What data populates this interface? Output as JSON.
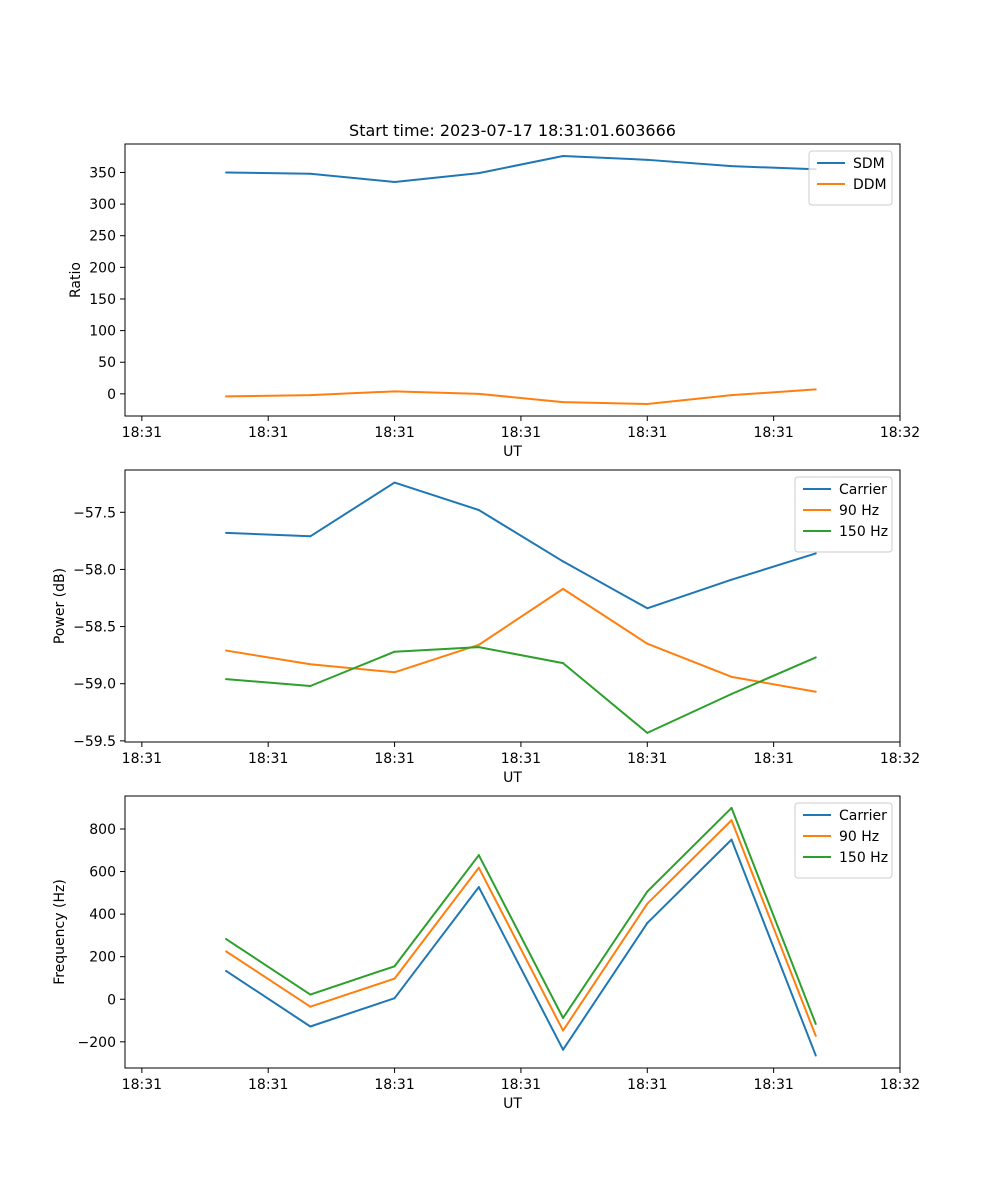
{
  "colors": {
    "blue": "#1f77b4",
    "orange": "#ff7f0e",
    "green": "#2ca02c"
  },
  "figure_title": "Start time: 2023-07-17 18:31:01.603666",
  "chart_data": [
    {
      "type": "line",
      "title": "Start time: 2023-07-17 18:31:01.603666",
      "xlabel": "UT",
      "ylabel": "Ratio",
      "x": [
        1,
        2,
        3,
        4,
        5,
        6,
        7,
        8
      ],
      "x_ticks": [
        0,
        1.5,
        3,
        4.5,
        6,
        7.5,
        9
      ],
      "x_tick_labels": [
        "18:31",
        "18:31",
        "18:31",
        "18:31",
        "18:31",
        "18:31",
        "18:32"
      ],
      "xlim": [
        -0.2,
        9.0
      ],
      "ylim": [
        -35,
        395
      ],
      "y_ticks": [
        0,
        50,
        100,
        150,
        200,
        250,
        300,
        350
      ],
      "y_tick_labels": [
        "0",
        "50",
        "100",
        "150",
        "200",
        "250",
        "300",
        "350"
      ],
      "legend": "top-right",
      "series": [
        {
          "name": "SDM",
          "color": "blue",
          "values": [
            350,
            348,
            335,
            349,
            376,
            370,
            360,
            355
          ]
        },
        {
          "name": "DDM",
          "color": "orange",
          "values": [
            -4,
            -2,
            4,
            0,
            -13,
            -16,
            -2,
            7
          ]
        }
      ]
    },
    {
      "type": "line",
      "title": "",
      "xlabel": "UT",
      "ylabel": "Power (dB)",
      "x": [
        1,
        2,
        3,
        4,
        5,
        6,
        7,
        8
      ],
      "x_ticks": [
        0,
        1.5,
        3,
        4.5,
        6,
        7.5,
        9
      ],
      "x_tick_labels": [
        "18:31",
        "18:31",
        "18:31",
        "18:31",
        "18:31",
        "18:31",
        "18:32"
      ],
      "xlim": [
        -0.2,
        9.0
      ],
      "ylim": [
        -59.51,
        -57.13
      ],
      "y_ticks": [
        -57.5,
        -58.0,
        -58.5,
        -59.0,
        -59.5
      ],
      "y_tick_labels": [
        "−57.5",
        "−58.0",
        "−58.5",
        "−59.0",
        "−59.5"
      ],
      "legend": "top-right",
      "series": [
        {
          "name": "Carrier",
          "color": "blue",
          "values": [
            -57.68,
            -57.71,
            -57.24,
            -57.48,
            -57.93,
            -58.34,
            -58.09,
            -57.86
          ]
        },
        {
          "name": "90 Hz",
          "color": "orange",
          "values": [
            -58.71,
            -58.83,
            -58.9,
            -58.66,
            -58.17,
            -58.65,
            -58.94,
            -59.07
          ]
        },
        {
          "name": "150 Hz",
          "color": "green",
          "values": [
            -58.96,
            -59.02,
            -58.72,
            -58.68,
            -58.82,
            -59.43,
            -59.09,
            -58.77
          ]
        }
      ]
    },
    {
      "type": "line",
      "title": "",
      "xlabel": "UT",
      "ylabel": "Frequency (Hz)",
      "x": [
        1,
        2,
        3,
        4,
        5,
        6,
        7,
        8
      ],
      "x_ticks": [
        0,
        1.5,
        3,
        4.5,
        6,
        7.5,
        9
      ],
      "x_tick_labels": [
        "18:31",
        "18:31",
        "18:31",
        "18:31",
        "18:31",
        "18:31",
        "18:32"
      ],
      "xlim": [
        -0.2,
        9.0
      ],
      "ylim": [
        -323,
        955
      ],
      "y_ticks": [
        -200,
        0,
        200,
        400,
        600,
        800
      ],
      "y_tick_labels": [
        "−200",
        "0",
        "200",
        "400",
        "600",
        "800"
      ],
      "legend": "top-right",
      "series": [
        {
          "name": "Carrier",
          "color": "blue",
          "values": [
            133,
            -128,
            5,
            527,
            -237,
            358,
            750,
            -264
          ]
        },
        {
          "name": "90 Hz",
          "color": "orange",
          "values": [
            225,
            -35,
            97,
            618,
            -147,
            449,
            841,
            -172
          ]
        },
        {
          "name": "150 Hz",
          "color": "green",
          "values": [
            283,
            22,
            155,
            677,
            -88,
            506,
            899,
            -116
          ]
        }
      ]
    }
  ]
}
